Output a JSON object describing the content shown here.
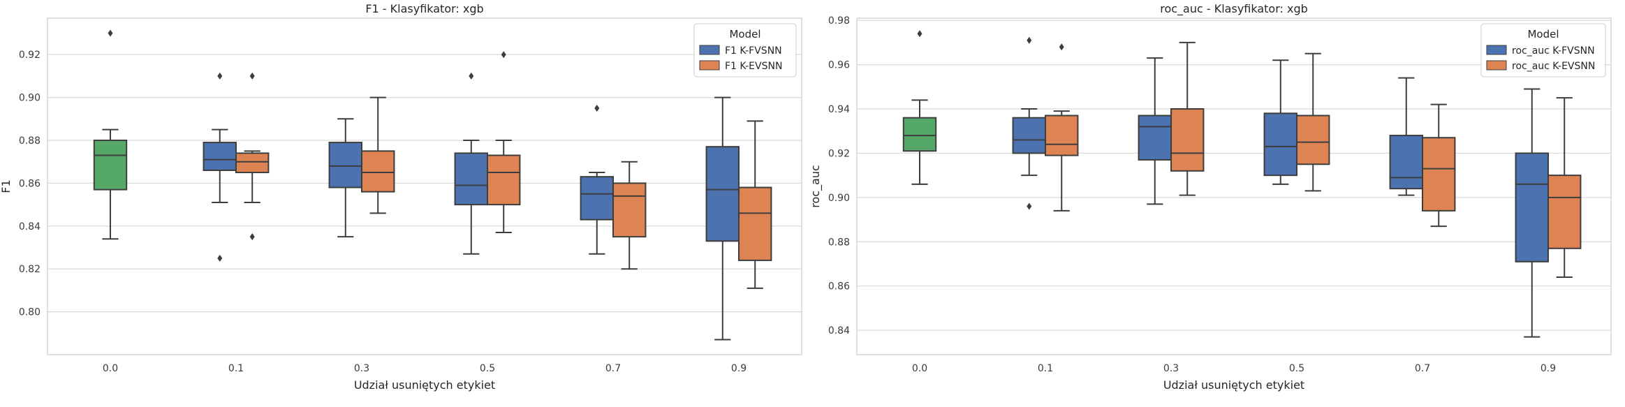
{
  "chart_data": [
    {
      "type": "box",
      "title": "F1 - Klasyfikator: xgb",
      "xlabel": "Udział usuniętych etykiet",
      "ylabel": "F1",
      "categories": [
        "0.0",
        "0.1",
        "0.3",
        "0.5",
        "0.7",
        "0.9"
      ],
      "ylim": [
        0.78,
        0.937
      ],
      "yticks": [
        0.8,
        0.82,
        0.84,
        0.86,
        0.88,
        0.9,
        0.92
      ],
      "grid": true,
      "legend": {
        "title": "Model",
        "placement": "top-right"
      },
      "baseline": {
        "category": "0.0",
        "color": "#55a868",
        "box": {
          "whislo": 0.834,
          "q1": 0.857,
          "med": 0.873,
          "q3": 0.88,
          "whishi": 0.885,
          "fliers": [
            0.93
          ]
        }
      },
      "series": [
        {
          "name": "F1 K-FVSNN",
          "color": "#4c72b0",
          "boxes": [
            {
              "category": "0.1",
              "whislo": 0.851,
              "q1": 0.866,
              "med": 0.871,
              "q3": 0.879,
              "whishi": 0.885,
              "fliers": [
                0.91,
                0.825
              ]
            },
            {
              "category": "0.3",
              "whislo": 0.835,
              "q1": 0.858,
              "med": 0.868,
              "q3": 0.879,
              "whishi": 0.89,
              "fliers": []
            },
            {
              "category": "0.5",
              "whislo": 0.827,
              "q1": 0.85,
              "med": 0.859,
              "q3": 0.874,
              "whishi": 0.88,
              "fliers": [
                0.91
              ]
            },
            {
              "category": "0.7",
              "whislo": 0.827,
              "q1": 0.843,
              "med": 0.855,
              "q3": 0.863,
              "whishi": 0.865,
              "fliers": [
                0.895
              ]
            },
            {
              "category": "0.9",
              "whislo": 0.787,
              "q1": 0.833,
              "med": 0.857,
              "q3": 0.877,
              "whishi": 0.9,
              "fliers": []
            }
          ]
        },
        {
          "name": "F1 K-EVSNN",
          "color": "#dd8452",
          "boxes": [
            {
              "category": "0.1",
              "whislo": 0.851,
              "q1": 0.865,
              "med": 0.87,
              "q3": 0.874,
              "whishi": 0.875,
              "fliers": [
                0.91,
                0.835
              ]
            },
            {
              "category": "0.3",
              "whislo": 0.846,
              "q1": 0.856,
              "med": 0.865,
              "q3": 0.875,
              "whishi": 0.9,
              "fliers": []
            },
            {
              "category": "0.5",
              "whislo": 0.837,
              "q1": 0.85,
              "med": 0.865,
              "q3": 0.873,
              "whishi": 0.88,
              "fliers": [
                0.92
              ]
            },
            {
              "category": "0.7",
              "whislo": 0.82,
              "q1": 0.835,
              "med": 0.854,
              "q3": 0.86,
              "whishi": 0.87,
              "fliers": []
            },
            {
              "category": "0.9",
              "whislo": 0.811,
              "q1": 0.824,
              "med": 0.846,
              "q3": 0.858,
              "whishi": 0.889,
              "fliers": []
            }
          ]
        }
      ]
    },
    {
      "type": "box",
      "title": "roc_auc - Klasyfikator: xgb",
      "xlabel": "Udział usuniętych etykiet",
      "ylabel": "roc_auc",
      "categories": [
        "0.0",
        "0.1",
        "0.3",
        "0.5",
        "0.7",
        "0.9"
      ],
      "ylim": [
        0.829,
        0.981
      ],
      "yticks": [
        0.84,
        0.86,
        0.88,
        0.9,
        0.92,
        0.94,
        0.96,
        0.98
      ],
      "grid": true,
      "legend": {
        "title": "Model",
        "placement": "top-right"
      },
      "baseline": {
        "category": "0.0",
        "color": "#55a868",
        "box": {
          "whislo": 0.906,
          "q1": 0.921,
          "med": 0.928,
          "q3": 0.936,
          "whishi": 0.944,
          "fliers": [
            0.974
          ]
        }
      },
      "series": [
        {
          "name": "roc_auc K-FVSNN",
          "color": "#4c72b0",
          "boxes": [
            {
              "category": "0.1",
              "whislo": 0.91,
              "q1": 0.92,
              "med": 0.926,
              "q3": 0.936,
              "whishi": 0.94,
              "fliers": [
                0.971,
                0.896
              ]
            },
            {
              "category": "0.3",
              "whislo": 0.897,
              "q1": 0.917,
              "med": 0.932,
              "q3": 0.937,
              "whishi": 0.963,
              "fliers": []
            },
            {
              "category": "0.5",
              "whislo": 0.906,
              "q1": 0.91,
              "med": 0.923,
              "q3": 0.938,
              "whishi": 0.962,
              "fliers": []
            },
            {
              "category": "0.7",
              "whislo": 0.901,
              "q1": 0.904,
              "med": 0.909,
              "q3": 0.928,
              "whishi": 0.954,
              "fliers": []
            },
            {
              "category": "0.9",
              "whislo": 0.837,
              "q1": 0.871,
              "med": 0.906,
              "q3": 0.92,
              "whishi": 0.949,
              "fliers": []
            }
          ]
        },
        {
          "name": "roc_auc K-EVSNN",
          "color": "#dd8452",
          "boxes": [
            {
              "category": "0.1",
              "whislo": 0.894,
              "q1": 0.919,
              "med": 0.924,
              "q3": 0.937,
              "whishi": 0.939,
              "fliers": [
                0.968
              ]
            },
            {
              "category": "0.3",
              "whislo": 0.901,
              "q1": 0.912,
              "med": 0.92,
              "q3": 0.94,
              "whishi": 0.97,
              "fliers": []
            },
            {
              "category": "0.5",
              "whislo": 0.903,
              "q1": 0.915,
              "med": 0.925,
              "q3": 0.937,
              "whishi": 0.965,
              "fliers": []
            },
            {
              "category": "0.7",
              "whislo": 0.887,
              "q1": 0.894,
              "med": 0.913,
              "q3": 0.927,
              "whishi": 0.942,
              "fliers": []
            },
            {
              "category": "0.9",
              "whislo": 0.864,
              "q1": 0.877,
              "med": 0.9,
              "q3": 0.91,
              "whishi": 0.945,
              "fliers": []
            }
          ]
        }
      ]
    }
  ]
}
